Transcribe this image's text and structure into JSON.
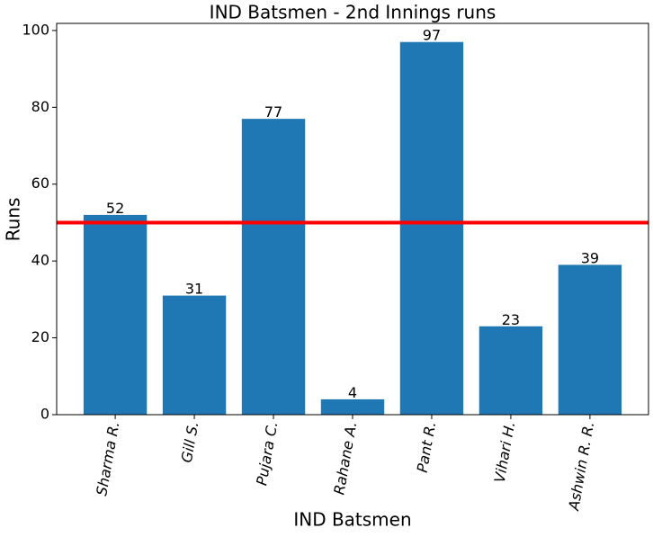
{
  "chart_data": {
    "type": "bar",
    "title": "IND Batsmen - 2nd Innings runs",
    "x_label": "IND Batsmen",
    "y_label": "Runs",
    "categories": [
      "Sharma R.",
      "Gill S.",
      "Pujara C.",
      "Rahane A.",
      "Pant R.",
      "Vihari H.",
      "Ashwin R. R."
    ],
    "values": [
      52,
      31,
      77,
      4,
      97,
      23,
      39
    ],
    "color": "#1f77b4",
    "hline": {
      "value": 50,
      "color": "#ff0000"
    },
    "ylim": [
      0,
      101.85
    ],
    "yticks": [
      0,
      20,
      40,
      60,
      80,
      100
    ],
    "grid": false
  }
}
